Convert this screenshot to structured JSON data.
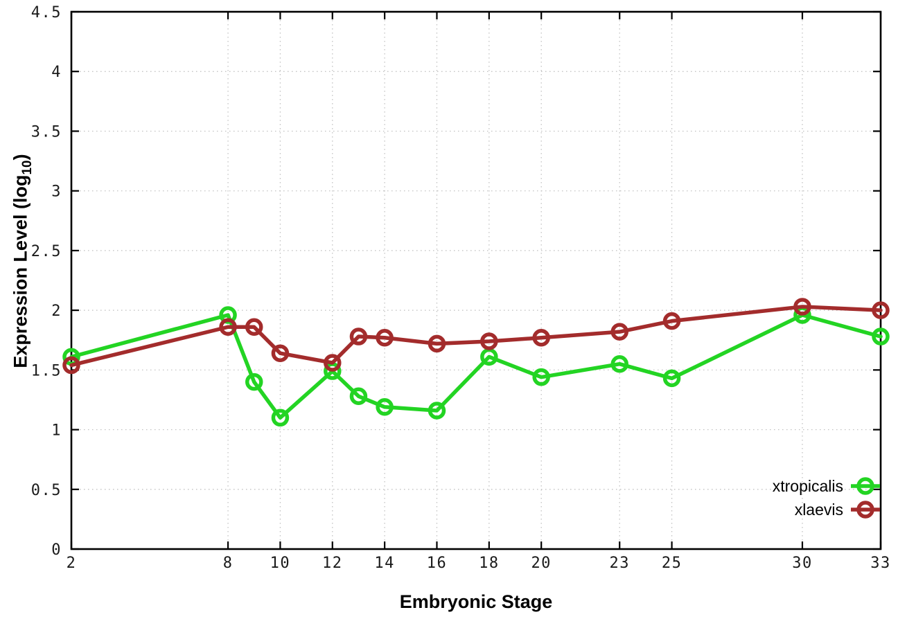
{
  "chart_data": {
    "type": "line",
    "title": "",
    "xlabel": "Embryonic Stage",
    "ylabel_text": "Expression Level (log10)",
    "ylabel_parts": {
      "main": "Expression Level (log",
      "sub": "10",
      "suffix": ")"
    },
    "x": [
      2,
      8,
      9,
      10,
      12,
      13,
      14,
      16,
      18,
      20,
      23,
      25,
      30,
      33
    ],
    "series": [
      {
        "name": "xtropicalis",
        "color": "#23d423",
        "marker": "open-circle",
        "values": [
          1.61,
          1.96,
          1.4,
          1.1,
          1.49,
          1.28,
          1.19,
          1.16,
          1.61,
          1.44,
          1.55,
          1.43,
          1.96,
          1.78
        ]
      },
      {
        "name": "xlaevis",
        "color": "#a32c2c",
        "marker": "open-circle",
        "values": [
          1.54,
          1.86,
          1.86,
          1.64,
          1.56,
          1.78,
          1.77,
          1.72,
          1.74,
          1.77,
          1.82,
          1.91,
          2.03,
          2.0
        ]
      }
    ],
    "xlim": [
      2,
      33
    ],
    "ylim": [
      0,
      4.5
    ],
    "x_ticks": {
      "values": [
        2,
        8,
        10,
        12,
        14,
        16,
        18,
        20,
        23,
        25,
        30,
        33
      ],
      "labels": [
        "2",
        "8",
        "10",
        "12",
        "14",
        "16",
        "18",
        "20",
        "23",
        "25",
        "30",
        "33"
      ]
    },
    "y_ticks": {
      "values": [
        0,
        0.5,
        1,
        1.5,
        2,
        2.5,
        3,
        3.5,
        4,
        4.5
      ],
      "labels": [
        "0",
        "0.5",
        "1",
        "1.5",
        "2",
        "2.5",
        "3",
        "3.5",
        "4",
        "4.5"
      ]
    },
    "grid": true,
    "grid_color": "#bdbdbd",
    "border_color": "#000000",
    "tick_label_color": "#1a1a1a",
    "legend_position": "bottom-right-inside"
  }
}
